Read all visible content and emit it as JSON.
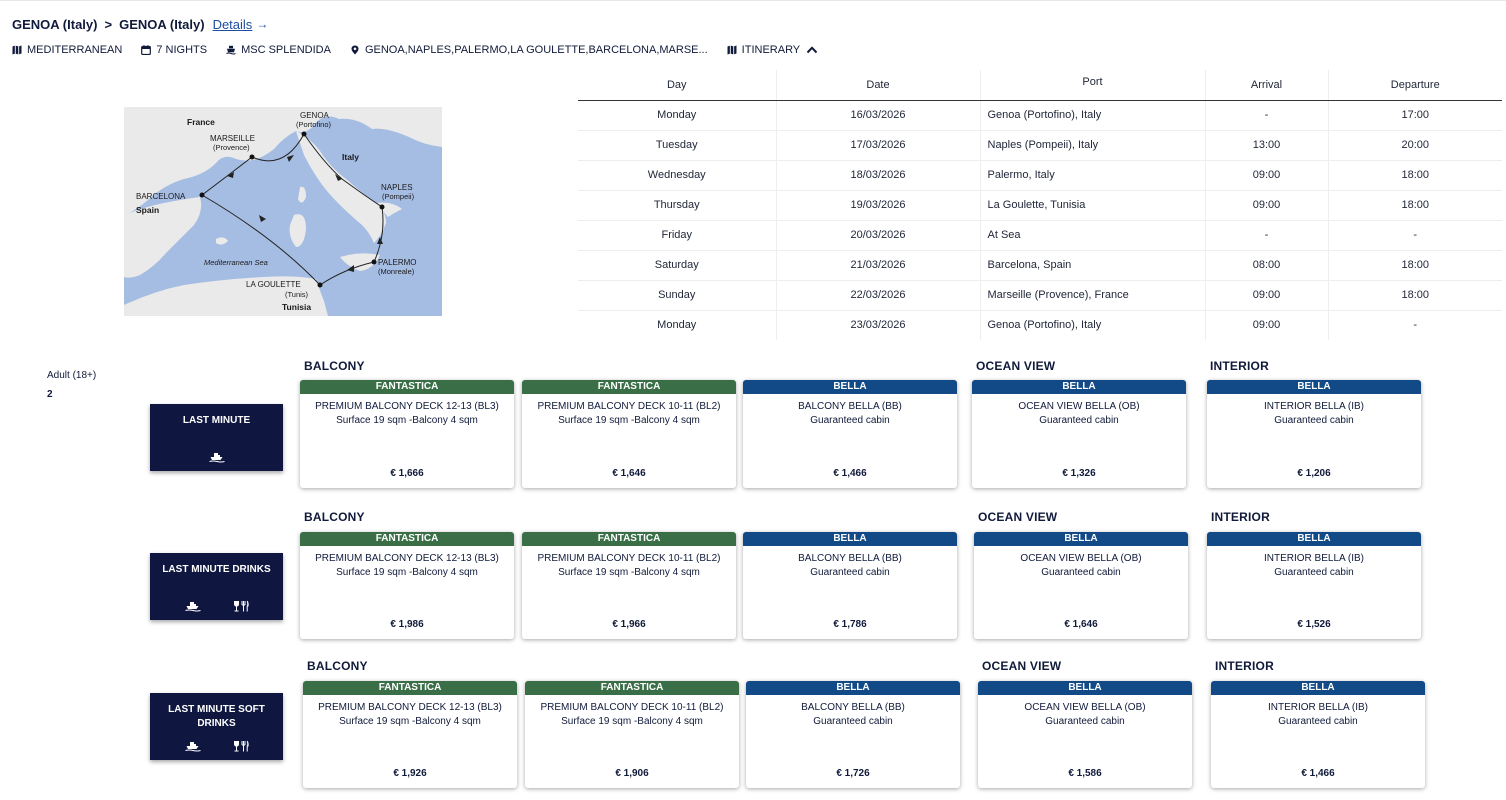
{
  "header": {
    "origin": "GENOA (Italy)",
    "separator": ">",
    "destination": "GENOA (Italy)",
    "details_label": "Details",
    "details_arrow": "→"
  },
  "meta": {
    "region": "MEDITERRANEAN",
    "nights": "7 NIGHTS",
    "ship": "MSC SPLENDIDA",
    "ports": "GENOA,NAPLES,PALERMO,LA GOULETTE,BARCELONA,MARSE...",
    "itinerary_label": "ITINERARY"
  },
  "map": {
    "labels": {
      "france": "France",
      "italy": "Italy",
      "spain": "Spain",
      "tunisia": "Tunisia",
      "sea": "Mediterranean Sea",
      "genoa": "GENOA",
      "genoa_sub": "(Portofino)",
      "marseille": "MARSEILLE",
      "marseille_sub": "(Provence)",
      "naples": "NAPLES",
      "naples_sub": "(Pompeii)",
      "barcelona": "BARCELONA",
      "palermo": "PALERMO",
      "palermo_sub": "(Monreale)",
      "goulette": "LA GOULETTE",
      "goulette_sub": "(Tunis)"
    }
  },
  "itinerary": {
    "headers": [
      "Day",
      "Date",
      "Port",
      "Arrival",
      "Departure"
    ],
    "rows": [
      {
        "day": "Monday",
        "date": "16/03/2026",
        "port": "Genoa (Portofino), Italy",
        "arrival": "-",
        "departure": "17:00"
      },
      {
        "day": "Tuesday",
        "date": "17/03/2026",
        "port": "Naples (Pompeii), Italy",
        "arrival": "13:00",
        "departure": "20:00"
      },
      {
        "day": "Wednesday",
        "date": "18/03/2026",
        "port": "Palermo, Italy",
        "arrival": "09:00",
        "departure": "18:00"
      },
      {
        "day": "Thursday",
        "date": "19/03/2026",
        "port": "La Goulette, Tunisia",
        "arrival": "09:00",
        "departure": "18:00"
      },
      {
        "day": "Friday",
        "date": "20/03/2026",
        "port": "At Sea",
        "arrival": "-",
        "departure": "-"
      },
      {
        "day": "Saturday",
        "date": "21/03/2026",
        "port": "Barcelona, Spain",
        "arrival": "08:00",
        "departure": "18:00"
      },
      {
        "day": "Sunday",
        "date": "22/03/2026",
        "port": "Marseille (Provence), France",
        "arrival": "09:00",
        "departure": "18:00"
      },
      {
        "day": "Monday",
        "date": "23/03/2026",
        "port": "Genoa (Portofino), Italy",
        "arrival": "09:00",
        "departure": "-"
      }
    ]
  },
  "passengers": {
    "label": "Adult (18+)",
    "count": "2"
  },
  "fares": [
    {
      "name": "LAST MINUTE",
      "icons": [
        "ship-icon"
      ],
      "categories": {
        "balcony": "BALCONY",
        "ocean_view": "OCEAN VIEW",
        "interior": "INTERIOR"
      },
      "cabins": [
        {
          "band": "FANTASTICA",
          "color": "#3a6e47",
          "name": "PREMIUM BALCONY DECK 12-13 (BL3)",
          "desc": "Surface 19 sqm -Balcony 4 sqm",
          "price": "€ 1,666"
        },
        {
          "band": "FANTASTICA",
          "color": "#3a6e47",
          "name": "PREMIUM BALCONY DECK 10-11 (BL2)",
          "desc": "Surface 19 sqm -Balcony 4 sqm",
          "price": "€ 1,646"
        },
        {
          "band": "BELLA",
          "color": "#124a87",
          "name": "BALCONY BELLA (BB)",
          "desc": "Guaranteed cabin",
          "price": "€ 1,466"
        },
        {
          "band": "BELLA",
          "color": "#124a87",
          "name": "OCEAN VIEW BELLA (OB)",
          "desc": "Guaranteed cabin",
          "price": "€ 1,326"
        },
        {
          "band": "BELLA",
          "color": "#124a87",
          "name": "INTERIOR BELLA (IB)",
          "desc": "Guaranteed cabin",
          "price": "€ 1,206"
        }
      ]
    },
    {
      "name": "LAST MINUTE DRINKS",
      "icons": [
        "ship-icon",
        "drinks-dining-icon"
      ],
      "categories": {
        "balcony": "BALCONY",
        "ocean_view": "OCEAN VIEW",
        "interior": "INTERIOR"
      },
      "cabins": [
        {
          "band": "FANTASTICA",
          "color": "#3a6e47",
          "name": "PREMIUM BALCONY DECK 12-13 (BL3)",
          "desc": "Surface 19 sqm -Balcony 4 sqm",
          "price": "€ 1,986"
        },
        {
          "band": "FANTASTICA",
          "color": "#3a6e47",
          "name": "PREMIUM BALCONY DECK 10-11 (BL2)",
          "desc": "Surface 19 sqm -Balcony 4 sqm",
          "price": "€ 1,966"
        },
        {
          "band": "BELLA",
          "color": "#124a87",
          "name": "BALCONY BELLA (BB)",
          "desc": "Guaranteed cabin",
          "price": "€ 1,786"
        },
        {
          "band": "BELLA",
          "color": "#124a87",
          "name": "OCEAN VIEW BELLA (OB)",
          "desc": "Guaranteed cabin",
          "price": "€ 1,646"
        },
        {
          "band": "BELLA",
          "color": "#124a87",
          "name": "INTERIOR BELLA (IB)",
          "desc": "Guaranteed cabin",
          "price": "€ 1,526"
        }
      ]
    },
    {
      "name": "LAST MINUTE SOFT DRINKS",
      "icons": [
        "ship-icon",
        "drinks-dining-icon"
      ],
      "categories": {
        "balcony": "BALCONY",
        "ocean_view": "OCEAN VIEW",
        "interior": "INTERIOR"
      },
      "cabins": [
        {
          "band": "FANTASTICA",
          "color": "#3a6e47",
          "name": "PREMIUM BALCONY DECK 12-13 (BL3)",
          "desc": "Surface 19 sqm -Balcony 4 sqm",
          "price": "€ 1,926"
        },
        {
          "band": "FANTASTICA",
          "color": "#3a6e47",
          "name": "PREMIUM BALCONY DECK 10-11 (BL2)",
          "desc": "Surface 19 sqm -Balcony 4 sqm",
          "price": "€ 1,906"
        },
        {
          "band": "BELLA",
          "color": "#124a87",
          "name": "BALCONY BELLA (BB)",
          "desc": "Guaranteed cabin",
          "price": "€ 1,726"
        },
        {
          "band": "BELLA",
          "color": "#124a87",
          "name": "OCEAN VIEW BELLA (OB)",
          "desc": "Guaranteed cabin",
          "price": "€ 1,586"
        },
        {
          "band": "BELLA",
          "color": "#124a87",
          "name": "INTERIOR BELLA (IB)",
          "desc": "Guaranteed cabin",
          "price": "€ 1,466"
        }
      ]
    }
  ]
}
